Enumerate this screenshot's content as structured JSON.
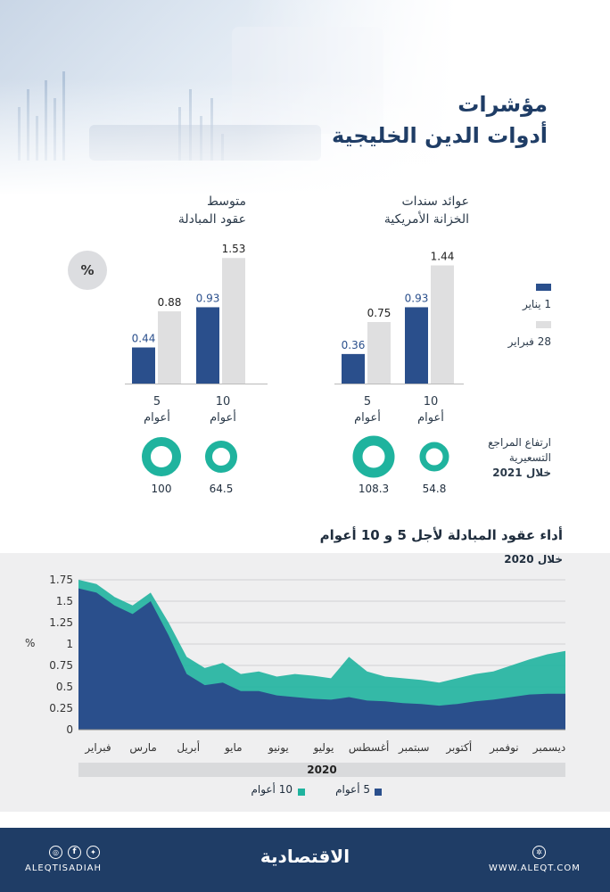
{
  "title": {
    "line1": "مؤشرات",
    "line2": "أدوات الدين الخليجية"
  },
  "colors": {
    "dark_blue": "#2a4f8c",
    "light_gray": "#dfdfe0",
    "teal": "#1fb39e",
    "navy_footer": "#1f3d66"
  },
  "legend_top": {
    "series1": "1 يناير",
    "series2": "28 فبراير"
  },
  "unit_badge": "%",
  "treasury": {
    "title_line1": "عوائد سندات",
    "title_line2": "الخزانة الأمريكية",
    "bars": [
      {
        "cat_line1": "10",
        "cat_line2": "أعوام",
        "jan": "0.93",
        "feb": "1.44",
        "ring_value": "54.8"
      },
      {
        "cat_line1": "5",
        "cat_line2": "أعوام",
        "jan": "0.36",
        "feb": "0.75",
        "ring_value": "108.3"
      }
    ]
  },
  "swaps": {
    "title_line1": "متوسط",
    "title_line2": "عقود المبادلة",
    "bars": [
      {
        "cat_line1": "10",
        "cat_line2": "أعوام",
        "jan": "0.93",
        "feb": "1.53",
        "ring_value": "64.5"
      },
      {
        "cat_line1": "5",
        "cat_line2": "أعوام",
        "jan": "0.44",
        "feb": "0.88",
        "ring_value": "100"
      }
    ]
  },
  "ring_caption": {
    "line1": "ارتفاع المراجع",
    "line2": "التسعيرية",
    "line3": "خلال 2021"
  },
  "chart_data": {
    "type": "area",
    "title": "أداء عقود المبادلة لأجل 5 و 10 أعوام",
    "subtitle": "خلال 2020",
    "ylabel": "%",
    "xlabel": "2020",
    "ylim": [
      0,
      1.75
    ],
    "yticks": [
      "0",
      "0.25",
      "0.5",
      "0.75",
      "1",
      "1.25",
      "1.5",
      "1.75"
    ],
    "months": [
      "فبراير",
      "مارس",
      "أبريل",
      "مايو",
      "يونيو",
      "يوليو",
      "أغسطس",
      "سبتمبر",
      "أكتوبر",
      "نوفمبر",
      "ديسمبر"
    ],
    "x": [
      0,
      2,
      4,
      6,
      8,
      10,
      12,
      14,
      16,
      18,
      20,
      22,
      24,
      26,
      28,
      30,
      32,
      34,
      36,
      38,
      40,
      42,
      44,
      46,
      48,
      50,
      52,
      54
    ],
    "series": [
      {
        "name": "10 أعوام",
        "color": "#1fb39e",
        "values": [
          1.75,
          1.7,
          1.55,
          1.45,
          1.6,
          1.25,
          0.85,
          0.72,
          0.78,
          0.65,
          0.68,
          0.62,
          0.65,
          0.63,
          0.6,
          0.85,
          0.68,
          0.62,
          0.6,
          0.58,
          0.55,
          0.6,
          0.65,
          0.68,
          0.75,
          0.82,
          0.88,
          0.92
        ]
      },
      {
        "name": "5 أعوام",
        "color": "#2a4f8c",
        "values": [
          1.65,
          1.6,
          1.45,
          1.35,
          1.5,
          1.1,
          0.65,
          0.52,
          0.55,
          0.45,
          0.45,
          0.4,
          0.38,
          0.36,
          0.35,
          0.38,
          0.34,
          0.33,
          0.31,
          0.3,
          0.28,
          0.3,
          0.33,
          0.35,
          0.38,
          0.41,
          0.42,
          0.42
        ]
      }
    ]
  },
  "footer": {
    "handle": "ALEQTISADIAH",
    "brand": "الاقتصادية",
    "site": "WWW.ALEQT.COM"
  }
}
